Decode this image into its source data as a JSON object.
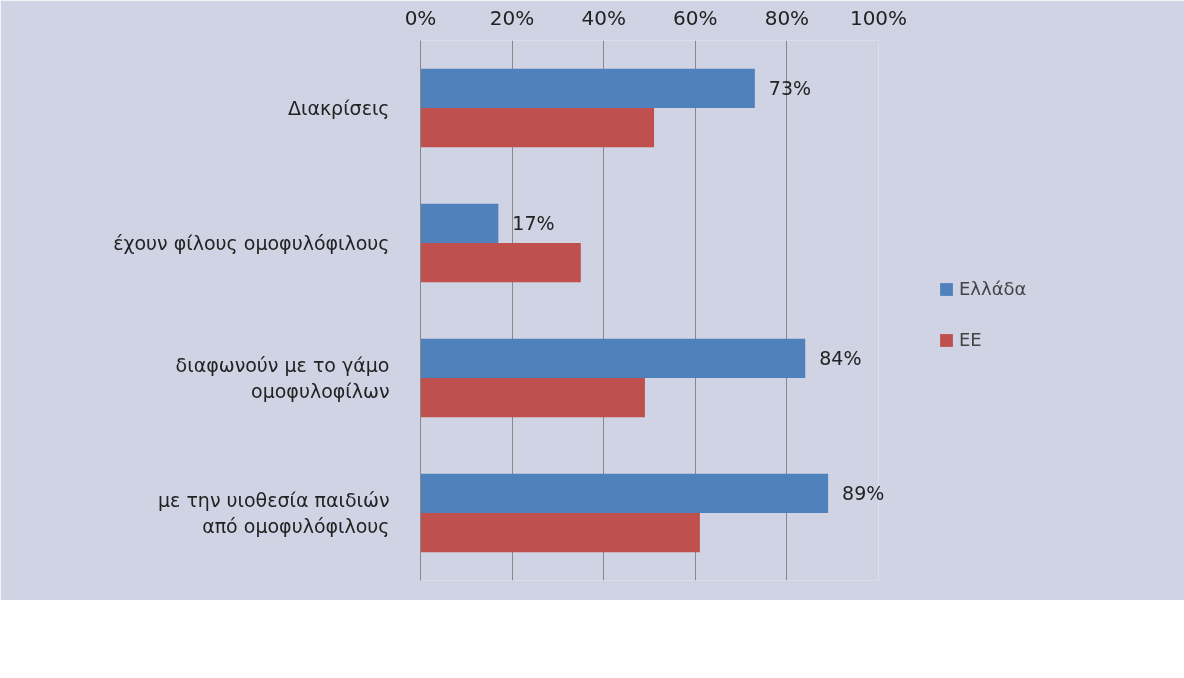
{
  "chart_data": {
    "type": "bar",
    "orientation": "horizontal",
    "categories": [
      "Διακρίσεις",
      "έχουν φίλους ομοφυλόφιλους",
      "διαφωνούν με το γάμο ομοφυλοφίλων",
      "με την υιοθεσία παιδιών από ομοφυλόφιλους"
    ],
    "series": [
      {
        "name": "Ελλάδα",
        "color": "#4f81bd",
        "values": [
          73,
          17,
          84,
          89
        ],
        "value_labels": [
          "73%",
          "17%",
          "84%",
          "89%"
        ]
      },
      {
        "name": "ΕΕ",
        "color": "#c0504d",
        "values": [
          51,
          35,
          49,
          61
        ]
      }
    ],
    "xlim": [
      0,
      100
    ],
    "xticks": [
      {
        "value": 0,
        "label": "0%"
      },
      {
        "value": 20,
        "label": "20%"
      },
      {
        "value": 40,
        "label": "40%"
      },
      {
        "value": 60,
        "label": "60%"
      },
      {
        "value": 80,
        "label": "80%"
      },
      {
        "value": 100,
        "label": "100%"
      }
    ],
    "grid": "x",
    "legend": "right"
  }
}
